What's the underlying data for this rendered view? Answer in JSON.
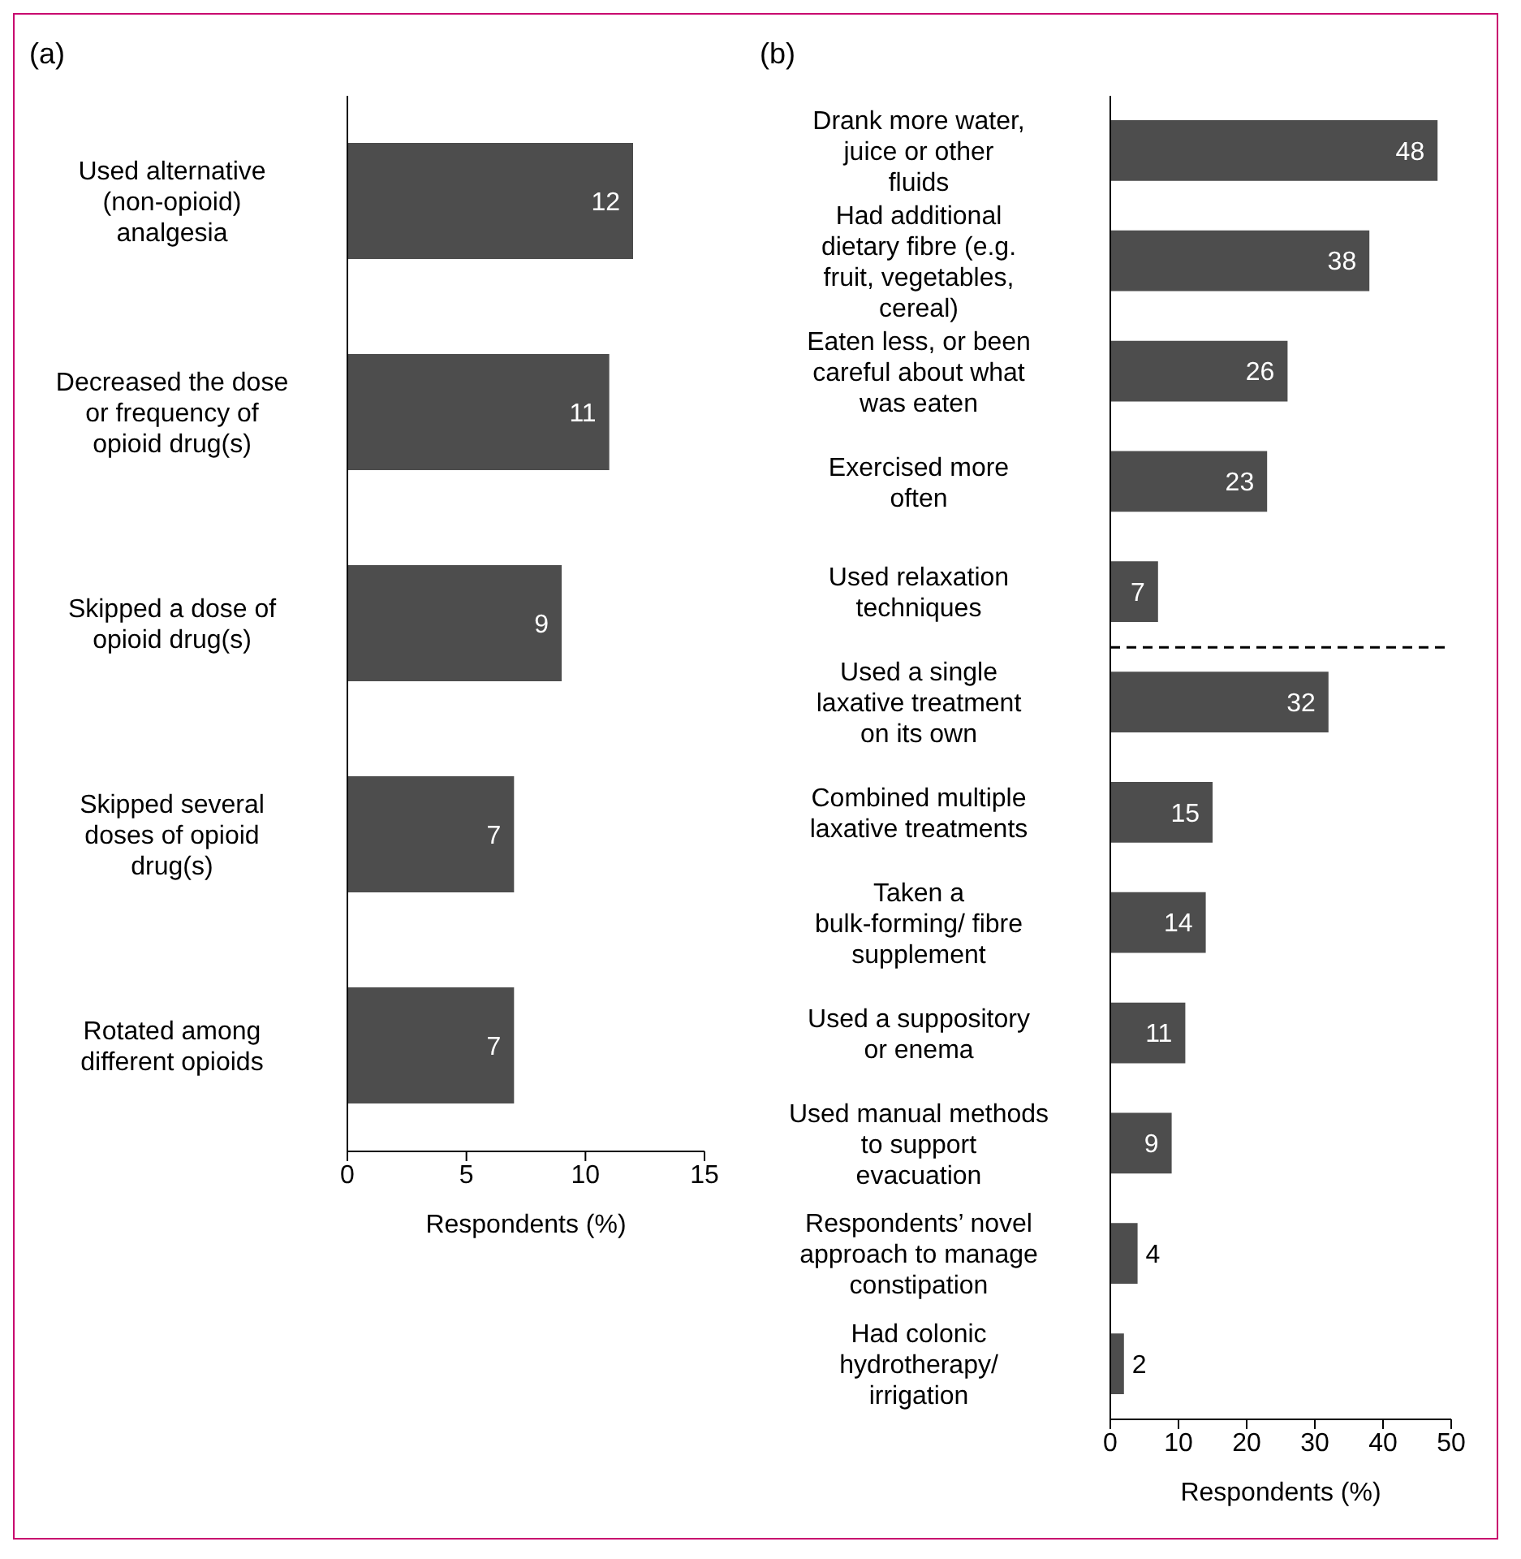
{
  "chart_data": [
    {
      "type": "bar",
      "orientation": "horizontal",
      "title": "(a)",
      "xlabel": "Respondents (%)",
      "categories": [
        "Used alternative (non-opioid) analgesia",
        "Decreased the dose or frequency of opioid drug(s)",
        "Skipped a dose of opioid drug(s)",
        "Skipped several doses of opioid drug(s)",
        "Rotated among different opioids"
      ],
      "values": [
        12,
        11,
        9,
        7,
        7
      ],
      "color": "#4d4d4d",
      "xlim": [
        0,
        15
      ],
      "xticks": [
        0,
        5,
        10,
        15
      ],
      "data_labels": true,
      "grid": false,
      "legend": false
    },
    {
      "type": "bar",
      "orientation": "horizontal",
      "title": "(b)",
      "xlabel": "Respondents (%)",
      "categories": [
        "Drank more water, juice or other fluids",
        "Had additional dietary fibre (e.g. fruit, vegetables, cereal)",
        "Eaten less, or been careful about what was eaten",
        "Exercised more often",
        "Used relaxation techniques",
        "Used a single laxative treatment on its own",
        "Combined multiple laxative treatments",
        "Taken a bulk-forming/ fibre supplement",
        "Used a suppository or enema",
        "Used manual methods to support evacuation",
        "Respondents’ novel approach to manage constipation",
        "Had colonic hydrotherapy/ irrigation"
      ],
      "values": [
        48,
        38,
        26,
        23,
        7,
        32,
        15,
        14,
        11,
        9,
        4,
        2
      ],
      "color": "#4d4d4d",
      "xlim": [
        0,
        50
      ],
      "xticks": [
        0,
        10,
        20,
        30,
        40,
        50
      ],
      "data_labels": true,
      "grid": false,
      "legend": false
    }
  ]
}
